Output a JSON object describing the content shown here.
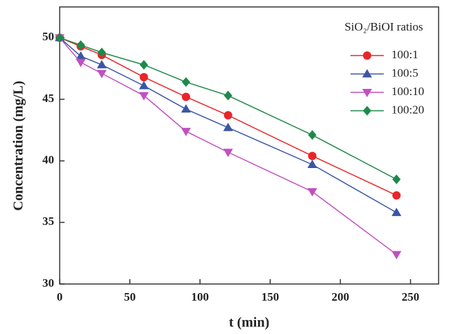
{
  "chart_data": {
    "type": "line",
    "x_label": "t (min)",
    "y_label": "Concentration (mg/L)",
    "x": [
      0,
      15,
      30,
      60,
      90,
      120,
      180,
      240
    ],
    "series": [
      {
        "name": "100:1",
        "color": "#e8262a",
        "marker": "circle",
        "values": [
          50,
          49.3,
          48.6,
          46.8,
          45.2,
          43.7,
          40.4,
          37.2
        ]
      },
      {
        "name": "100:5",
        "color": "#3a56a6",
        "marker": "triangle-up",
        "values": [
          50,
          48.5,
          47.8,
          46.1,
          44.2,
          42.7,
          39.7,
          35.8
        ]
      },
      {
        "name": "100:10",
        "color": "#c150c0",
        "marker": "triangle-down",
        "values": [
          50,
          48.0,
          47.1,
          45.3,
          42.4,
          40.7,
          37.5,
          32.4
        ]
      },
      {
        "name": "100:20",
        "color": "#1e8a4a",
        "marker": "diamond",
        "values": [
          50,
          49.4,
          48.8,
          47.8,
          46.4,
          45.3,
          42.1,
          38.5
        ]
      }
    ],
    "legend_title": "SiO₂/BiOI ratios",
    "legend_position": "upper right",
    "xlim": [
      0,
      270
    ],
    "xticks": [
      0,
      50,
      100,
      150,
      200,
      250
    ],
    "ylim": [
      30,
      52.5
    ],
    "yticks": [
      30,
      35,
      40,
      45,
      50
    ]
  }
}
